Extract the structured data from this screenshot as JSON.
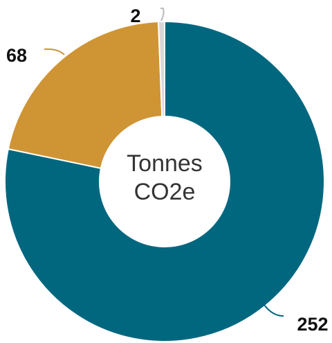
{
  "chart_data": {
    "type": "pie",
    "center_label": [
      "Tonnes",
      "CO2e"
    ],
    "slices": [
      {
        "value": 252,
        "label": "252",
        "color": "#00677f"
      },
      {
        "value": 68,
        "label": "68",
        "color": "#cf9434"
      },
      {
        "value": 2,
        "label": "2",
        "color": "#d8d8d8"
      }
    ],
    "legend": "none"
  }
}
